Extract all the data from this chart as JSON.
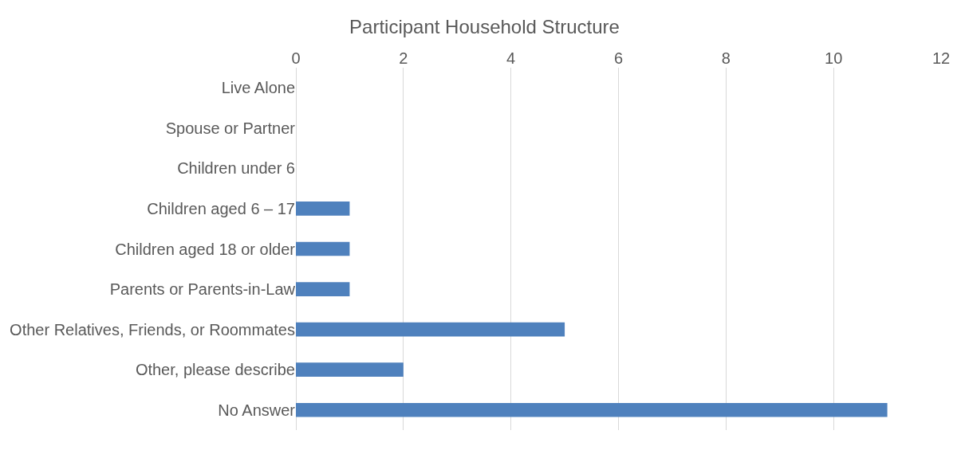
{
  "chart_data": {
    "type": "bar",
    "title": "Participant Household Structure",
    "orientation": "horizontal",
    "categories": [
      "Live Alone",
      "Spouse or Partner",
      "Children under 6",
      "Children aged 6 – 17",
      "Children aged 18 or older",
      "Parents or Parents-in-Law",
      "Other Relatives, Friends, or Roommates",
      "Other, please describe",
      "No Answer"
    ],
    "values": [
      0,
      0,
      0,
      1,
      1,
      1,
      5,
      2,
      11
    ],
    "color": "#4f81bd",
    "xlim": [
      0,
      12
    ],
    "xticks": [
      0,
      2,
      4,
      6,
      8,
      10,
      12
    ],
    "grid": "x",
    "legend": false
  }
}
